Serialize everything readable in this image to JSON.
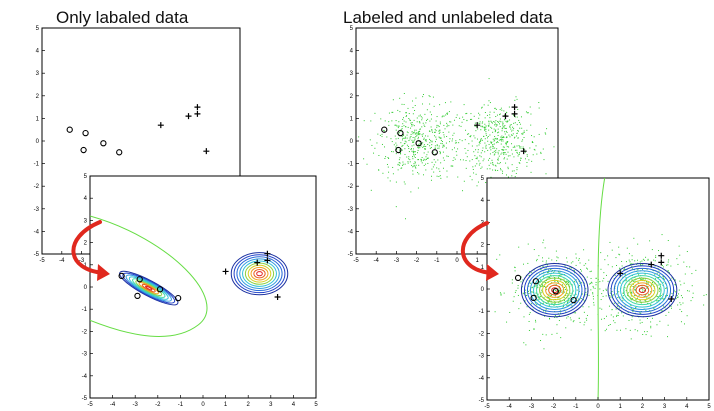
{
  "titles": {
    "left": "Only labaled data",
    "right": "Labeled and unlabeled data"
  },
  "tick_labels": {
    "x": [
      "-5",
      "-4",
      "-3",
      "-2",
      "-1",
      "0",
      "1",
      "2",
      "3",
      "4",
      "5"
    ],
    "y": [
      "5",
      "4",
      "3",
      "2",
      "1",
      "0",
      "-1",
      "-2",
      "-3",
      "-4",
      "-5"
    ]
  },
  "labeled_points": {
    "circles": [
      [
        -3.6,
        0.5
      ],
      [
        -2.8,
        0.35
      ],
      [
        -2.9,
        -0.4
      ],
      [
        -1.9,
        -0.1
      ],
      [
        -1.1,
        -0.5
      ]
    ],
    "crosses": [
      [
        1,
        0.7
      ],
      [
        2.4,
        1.1
      ],
      [
        2.85,
        1.2
      ],
      [
        2.85,
        1.5
      ],
      [
        3.3,
        -0.45
      ]
    ]
  },
  "colors": {
    "labeled_marker": "#000000",
    "unlabeled_points": "#33cc33",
    "decision_boundary": "#66dd44",
    "arrow": "#e0281e",
    "contour_outer": "#1a2fa0",
    "contour_inner": "#e02020"
  }
}
